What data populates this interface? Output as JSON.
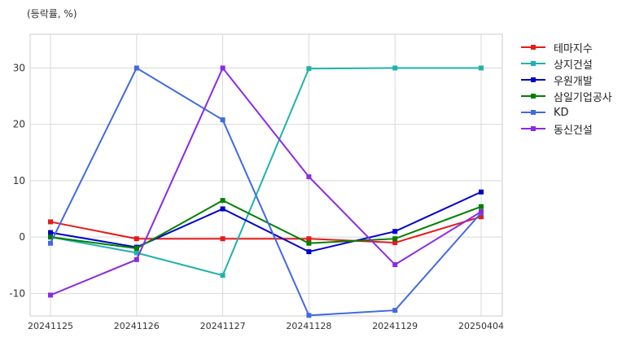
{
  "unit_label": "(등락률, %)",
  "chart_data": {
    "type": "line",
    "categories": [
      "20241125",
      "20241126",
      "20241127",
      "20241128",
      "20241129",
      "20250404"
    ],
    "ylim": [
      -14,
      36
    ],
    "yticks": [
      -10,
      0,
      10,
      20,
      30
    ],
    "grid": true,
    "legend_position": "right",
    "series": [
      {
        "name": "테마지수",
        "color": "#e41a1c",
        "values": [
          2.7,
          -0.3,
          -0.3,
          -0.3,
          -1.0,
          3.6
        ]
      },
      {
        "name": "상지건설",
        "color": "#20b2aa",
        "values": [
          0.0,
          -2.8,
          -6.8,
          29.9,
          30.0,
          30.0
        ]
      },
      {
        "name": "우원개발",
        "color": "#0000cd",
        "values": [
          0.8,
          -1.8,
          5.0,
          -2.6,
          1.0,
          8.0
        ]
      },
      {
        "name": "삼일기업공사",
        "color": "#008000",
        "values": [
          0.0,
          -2.0,
          6.5,
          -1.1,
          -0.3,
          5.4
        ]
      },
      {
        "name": "KD",
        "color": "#4169e1",
        "values": [
          -1.1,
          30.0,
          20.8,
          -13.9,
          -13.0,
          4.3
        ]
      },
      {
        "name": "동신건설",
        "color": "#8a2be2",
        "values": [
          -10.3,
          -4.0,
          30.0,
          10.7,
          -4.9,
          4.5
        ]
      }
    ]
  }
}
